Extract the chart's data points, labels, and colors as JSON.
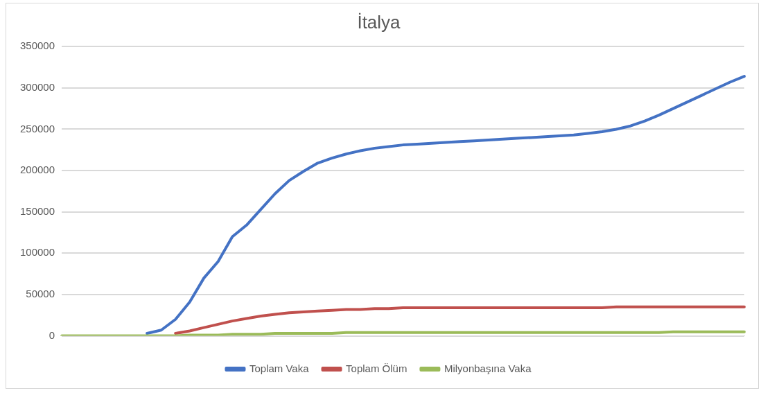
{
  "chart_data": {
    "type": "line",
    "title": "İtalya",
    "categories": [
      null,
      null,
      null,
      null,
      null,
      null,
      null,
      null,
      null,
      null,
      null,
      null,
      null,
      null,
      null,
      null,
      null,
      null,
      null,
      null,
      null,
      null,
      null,
      null,
      null,
      null,
      null,
      null,
      null,
      null,
      null,
      null,
      null,
      null,
      null,
      null,
      null,
      null,
      null,
      null,
      null,
      null,
      null,
      null,
      null,
      null,
      null,
      null,
      null
    ],
    "series": [
      {
        "name": "Toplam Vaka",
        "color": "#4472c4",
        "values": [
          null,
          null,
          null,
          null,
          null,
          null,
          3000,
          7000,
          20000,
          41000,
          70000,
          90000,
          120000,
          134000,
          153000,
          172000,
          188000,
          199000,
          209000,
          215000,
          220000,
          224000,
          227000,
          229000,
          231000,
          232000,
          233000,
          234000,
          235000,
          236000,
          237000,
          238000,
          239000,
          240000,
          241000,
          242000,
          243000,
          245000,
          247000,
          250000,
          254000,
          260000,
          267000,
          275000,
          283000,
          291000,
          299000,
          307000,
          314000
        ]
      },
      {
        "name": "Toplam Ölüm",
        "color": "#c0504d",
        "values": [
          null,
          null,
          null,
          null,
          null,
          null,
          null,
          null,
          3000,
          6000,
          10000,
          14000,
          18000,
          21000,
          24000,
          26000,
          28000,
          29000,
          30000,
          31000,
          32000,
          32000,
          33000,
          33000,
          34000,
          34000,
          34000,
          34000,
          34000,
          34000,
          34000,
          34000,
          34000,
          34000,
          34000,
          34000,
          34000,
          34000,
          34000,
          35000,
          35000,
          35000,
          35000,
          35000,
          35000,
          35000,
          35000,
          35000,
          35000
        ]
      },
      {
        "name": "Milyonbaşına Vaka",
        "color": "#9bbb59",
        "values": [
          0,
          0,
          0,
          0,
          0,
          0,
          0,
          0,
          0,
          1000,
          1000,
          1000,
          2000,
          2000,
          2000,
          3000,
          3000,
          3000,
          3000,
          3000,
          4000,
          4000,
          4000,
          4000,
          4000,
          4000,
          4000,
          4000,
          4000,
          4000,
          4000,
          4000,
          4000,
          4000,
          4000,
          4000,
          4000,
          4000,
          4000,
          4000,
          4000,
          4000,
          4000,
          5000,
          5000,
          5000,
          5000,
          5000,
          5000
        ]
      }
    ],
    "ylim": [
      0,
      350000
    ],
    "yticks": [
      0,
      50000,
      100000,
      150000,
      200000,
      250000,
      300000,
      350000
    ],
    "grid": "y",
    "legend": "bottom",
    "marker": "none",
    "line_style": "solid"
  }
}
